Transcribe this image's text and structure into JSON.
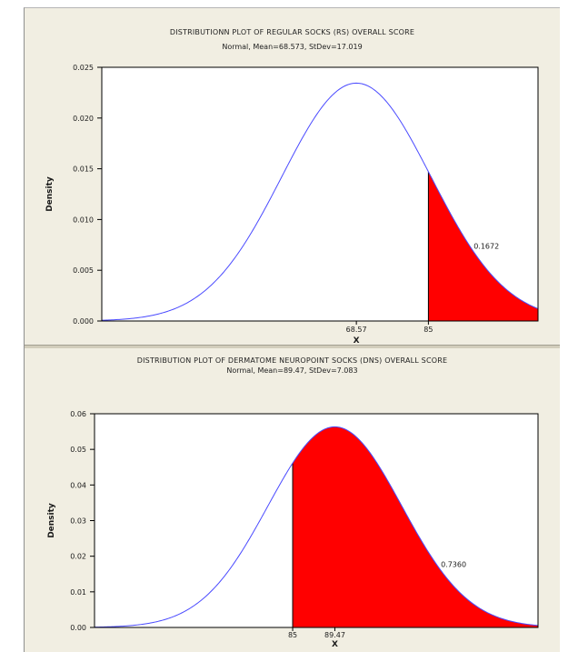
{
  "chart_data": [
    {
      "type": "area",
      "distribution": "normal",
      "title": "DISTRIBUTIONN PLOT OF REGULAR SOCKS (RS) OVERALL SCORE",
      "subtitle": "Normal, Mean=68.573, StDev=17.019",
      "mean": 68.573,
      "stdev": 17.019,
      "xlabel": "X",
      "ylabel": "Density",
      "xlim": [
        10.5,
        110
      ],
      "ylim": [
        0,
        0.025
      ],
      "yticks": [
        0.0,
        0.005,
        0.01,
        0.015,
        0.02,
        0.025
      ],
      "ytick_labels": [
        "0.000",
        "0.005",
        "0.010",
        "0.015",
        "0.020",
        "0.025"
      ],
      "xtick_values": [
        68.57,
        85
      ],
      "xtick_labels": [
        "68.57",
        "85"
      ],
      "shaded_region": {
        "from": 85,
        "to": 110,
        "side": "right",
        "area": 0.1672,
        "color": "#ff0000"
      },
      "annotation": "0.1672",
      "curve_color": "#4a4aff",
      "grid": false
    },
    {
      "type": "area",
      "distribution": "normal",
      "title": "DISTRIBUTION PLOT OF DERMATOME NEUROPOINT SOCKS (DNS) OVERALL SCORE",
      "subtitle": "Normal, Mean=89.47, StDev=7.083",
      "mean": 89.47,
      "stdev": 7.083,
      "xlabel": "X",
      "ylabel": "Density",
      "xlim": [
        64,
        111
      ],
      "ylim": [
        0,
        0.06
      ],
      "yticks": [
        0.0,
        0.01,
        0.02,
        0.03,
        0.04,
        0.05,
        0.06
      ],
      "ytick_labels": [
        "0.00",
        "0.01",
        "0.02",
        "0.03",
        "0.04",
        "0.05",
        "0.06"
      ],
      "xtick_values": [
        85,
        89.47
      ],
      "xtick_labels": [
        "85",
        "89.47"
      ],
      "shaded_region": {
        "from": 85,
        "to": 111,
        "side": "right",
        "area": 0.736,
        "color": "#ff0000"
      },
      "annotation": "0.7360",
      "curve_color": "#4a4aff",
      "grid": false
    }
  ]
}
